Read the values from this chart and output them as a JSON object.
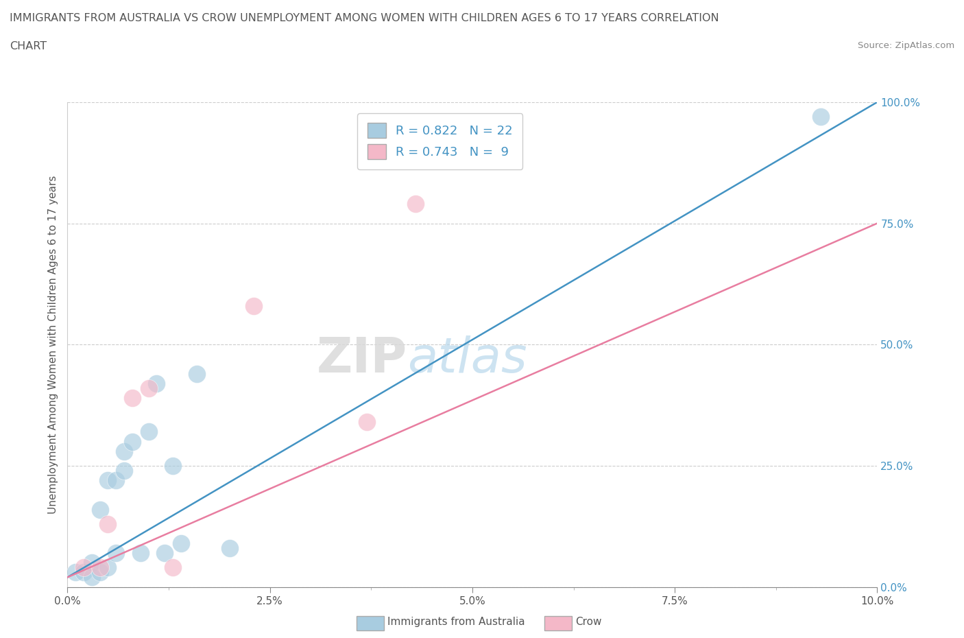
{
  "title_line1": "IMMIGRANTS FROM AUSTRALIA VS CROW UNEMPLOYMENT AMONG WOMEN WITH CHILDREN AGES 6 TO 17 YEARS CORRELATION",
  "title_line2": "CHART",
  "source_text": "Source: ZipAtlas.com",
  "ylabel": "Unemployment Among Women with Children Ages 6 to 17 years",
  "xlim": [
    0.0,
    0.1
  ],
  "ylim": [
    0.0,
    1.0
  ],
  "xtick_labels": [
    "0.0%",
    "",
    "2.5%",
    "",
    "5.0%",
    "",
    "7.5%",
    "",
    "10.0%"
  ],
  "xtick_vals": [
    0.0,
    0.0125,
    0.025,
    0.0375,
    0.05,
    0.0625,
    0.075,
    0.0875,
    0.1
  ],
  "xtick_display_labels": [
    "0.0%",
    "2.5%",
    "5.0%",
    "7.5%",
    "10.0%"
  ],
  "xtick_display_vals": [
    0.0,
    0.025,
    0.05,
    0.075,
    0.1
  ],
  "ytick_labels": [
    "0.0%",
    "25.0%",
    "50.0%",
    "75.0%",
    "100.0%"
  ],
  "ytick_vals": [
    0.0,
    0.25,
    0.5,
    0.75,
    1.0
  ],
  "blue_color": "#a8cce0",
  "pink_color": "#f4b8c8",
  "blue_line_color": "#4393c3",
  "pink_line_color": "#e87da0",
  "ytick_color": "#4393c3",
  "xtick_color": "#555555",
  "watermark_zip": "ZIP",
  "watermark_atlas": "atlas",
  "legend_R_blue": "R = 0.822",
  "legend_N_blue": "N = 22",
  "legend_R_pink": "R = 0.743",
  "legend_N_pink": "N =  9",
  "blue_scatter_x": [
    0.001,
    0.002,
    0.003,
    0.003,
    0.004,
    0.004,
    0.005,
    0.005,
    0.006,
    0.006,
    0.007,
    0.007,
    0.008,
    0.009,
    0.01,
    0.011,
    0.012,
    0.013,
    0.014,
    0.016,
    0.02,
    0.093
  ],
  "blue_scatter_y": [
    0.03,
    0.03,
    0.05,
    0.02,
    0.03,
    0.16,
    0.22,
    0.04,
    0.22,
    0.07,
    0.24,
    0.28,
    0.3,
    0.07,
    0.32,
    0.42,
    0.07,
    0.25,
    0.09,
    0.44,
    0.08,
    0.97
  ],
  "pink_scatter_x": [
    0.002,
    0.004,
    0.005,
    0.008,
    0.01,
    0.013,
    0.023,
    0.037,
    0.043
  ],
  "pink_scatter_y": [
    0.04,
    0.04,
    0.13,
    0.39,
    0.41,
    0.04,
    0.58,
    0.34,
    0.79
  ],
  "blue_line_x0": 0.0,
  "blue_line_y0": 0.02,
  "blue_line_x1": 0.1,
  "blue_line_y1": 1.0,
  "pink_line_x0": 0.0,
  "pink_line_y0": 0.02,
  "pink_line_x1": 0.1,
  "pink_line_y1": 0.75,
  "grid_color": "#cccccc",
  "grid_style": "--",
  "background_color": "#ffffff",
  "title_color": "#555555",
  "axis_label_color": "#555555"
}
